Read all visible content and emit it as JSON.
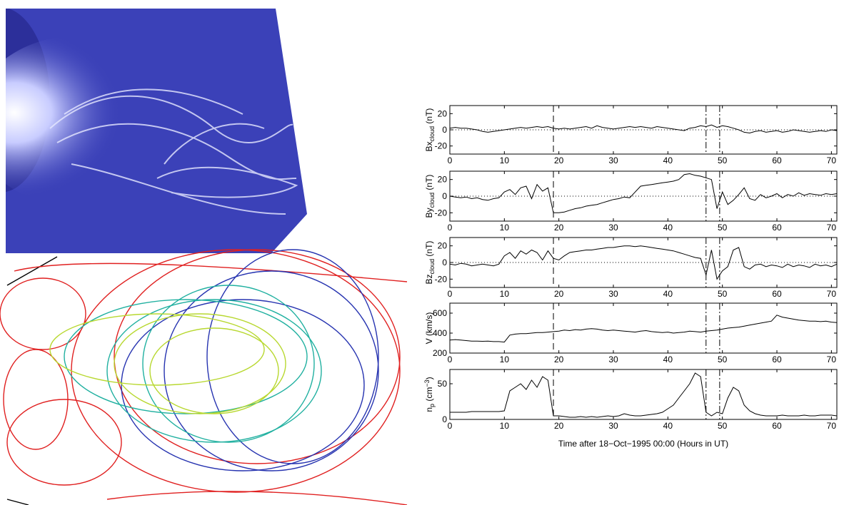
{
  "chart_data": [
    {
      "type": "line",
      "ylabel": [
        {
          "text": "Bx"
        },
        {
          "text": "cloud",
          "sub": true
        },
        {
          "text": " (nT)"
        }
      ],
      "x": [
        0,
        1,
        2,
        3,
        4,
        5,
        6,
        7,
        8,
        9,
        10,
        11,
        12,
        13,
        14,
        15,
        16,
        17,
        18,
        19,
        20,
        21,
        22,
        23,
        24,
        25,
        26,
        27,
        28,
        29,
        30,
        31,
        32,
        33,
        34,
        35,
        36,
        37,
        38,
        39,
        40,
        41,
        42,
        43,
        44,
        45,
        46,
        47,
        48,
        49,
        50,
        51,
        52,
        53,
        54,
        55,
        56,
        57,
        58,
        59,
        60,
        61,
        62,
        63,
        64,
        65,
        66,
        67,
        68,
        69,
        70,
        71
      ],
      "values": [
        2,
        3,
        2,
        2,
        1,
        0,
        -2,
        -3,
        -2,
        -1,
        0,
        1,
        2,
        3,
        2,
        3,
        4,
        3,
        4,
        2,
        1,
        2,
        1,
        2,
        3,
        4,
        2,
        5,
        3,
        2,
        1,
        2,
        3,
        4,
        3,
        4,
        3,
        2,
        4,
        3,
        2,
        1,
        0,
        -1,
        2,
        3,
        5,
        4,
        6,
        3,
        5,
        4,
        2,
        0,
        -3,
        -4,
        -2,
        -1,
        -3,
        -2,
        -1,
        -3,
        -2,
        0,
        -1,
        -2,
        -3,
        -2,
        -1,
        -2,
        0,
        -1
      ],
      "color": "#000000",
      "xlim": [
        0,
        71
      ],
      "xticks": [
        0,
        10,
        20,
        30,
        40,
        50,
        60,
        70
      ],
      "ylim": [
        -30,
        30
      ],
      "yticks": [
        20,
        0,
        -20
      ],
      "zero_line": true,
      "markers": [
        {
          "x": 19,
          "style": "dashed"
        },
        {
          "x": 47,
          "style": "dash-dot"
        },
        {
          "x": 49.5,
          "style": "dash-dot"
        }
      ]
    },
    {
      "type": "line",
      "ylabel": [
        {
          "text": "By"
        },
        {
          "text": "cloud",
          "sub": true
        },
        {
          "text": " (nT)"
        }
      ],
      "x": [
        0,
        1,
        2,
        3,
        4,
        5,
        6,
        7,
        8,
        9,
        10,
        11,
        12,
        13,
        14,
        15,
        16,
        17,
        18,
        19,
        20,
        21,
        22,
        23,
        24,
        25,
        26,
        27,
        28,
        29,
        30,
        31,
        32,
        33,
        34,
        35,
        36,
        37,
        38,
        39,
        40,
        41,
        42,
        43,
        44,
        45,
        46,
        47,
        48,
        49,
        50,
        51,
        52,
        53,
        54,
        55,
        56,
        57,
        58,
        59,
        60,
        61,
        62,
        63,
        64,
        65,
        66,
        67,
        68,
        69,
        70,
        71
      ],
      "values": [
        0,
        -1,
        -2,
        -1,
        -3,
        -2,
        -4,
        -5,
        -3,
        -2,
        5,
        8,
        2,
        10,
        12,
        -3,
        14,
        6,
        10,
        -20,
        -20,
        -19,
        -17,
        -15,
        -14,
        -12,
        -11,
        -10,
        -8,
        -6,
        -4,
        -3,
        -1,
        -2,
        5,
        12,
        13,
        14,
        15,
        16,
        17,
        18,
        20,
        26,
        27,
        25,
        24,
        22,
        20,
        -15,
        5,
        -10,
        -5,
        2,
        10,
        -3,
        -5,
        2,
        -2,
        0,
        3,
        -2,
        2,
        0,
        4,
        1,
        3,
        2,
        1,
        3,
        2,
        3
      ],
      "color": "#000000",
      "xlim": [
        0,
        71
      ],
      "xticks": [
        0,
        10,
        20,
        30,
        40,
        50,
        60,
        70
      ],
      "ylim": [
        -30,
        30
      ],
      "yticks": [
        20,
        0,
        -20
      ],
      "zero_line": true,
      "markers": [
        {
          "x": 19,
          "style": "dashed"
        },
        {
          "x": 47,
          "style": "dash-dot"
        },
        {
          "x": 49.5,
          "style": "dash-dot"
        }
      ]
    },
    {
      "type": "line",
      "ylabel": [
        {
          "text": "Bz"
        },
        {
          "text": "cloud",
          "sub": true
        },
        {
          "text": " (nT)"
        }
      ],
      "x": [
        0,
        1,
        2,
        3,
        4,
        5,
        6,
        7,
        8,
        9,
        10,
        11,
        12,
        13,
        14,
        15,
        16,
        17,
        18,
        19,
        20,
        21,
        22,
        23,
        24,
        25,
        26,
        27,
        28,
        29,
        30,
        31,
        32,
        33,
        34,
        35,
        36,
        37,
        38,
        39,
        40,
        41,
        42,
        43,
        44,
        45,
        46,
        47,
        48,
        49,
        50,
        51,
        52,
        53,
        54,
        55,
        56,
        57,
        58,
        59,
        60,
        61,
        62,
        63,
        64,
        65,
        66,
        67,
        68,
        69,
        70,
        71
      ],
      "values": [
        -2,
        -3,
        -1,
        -2,
        -4,
        -3,
        -2,
        -3,
        -4,
        -2,
        8,
        12,
        5,
        14,
        10,
        15,
        12,
        3,
        14,
        5,
        3,
        8,
        12,
        13,
        14,
        15,
        15,
        16,
        17,
        18,
        18,
        19,
        20,
        20,
        19,
        20,
        19,
        18,
        17,
        16,
        15,
        14,
        12,
        10,
        8,
        6,
        5,
        -15,
        15,
        -20,
        -10,
        -5,
        15,
        18,
        -5,
        -8,
        -3,
        -2,
        -5,
        -3,
        -4,
        -6,
        -2,
        -5,
        -3,
        -4,
        -6,
        -2,
        -4,
        -3,
        -5,
        -2
      ],
      "color": "#000000",
      "xlim": [
        0,
        71
      ],
      "xticks": [
        0,
        10,
        20,
        30,
        40,
        50,
        60,
        70
      ],
      "ylim": [
        -30,
        30
      ],
      "yticks": [
        20,
        0,
        -20
      ],
      "zero_line": true,
      "markers": [
        {
          "x": 19,
          "style": "dashed"
        },
        {
          "x": 47,
          "style": "dash-dot"
        },
        {
          "x": 49.5,
          "style": "dash-dot"
        }
      ]
    },
    {
      "type": "line",
      "ylabel": [
        {
          "text": "V (km/s)"
        }
      ],
      "x": [
        0,
        1,
        2,
        3,
        4,
        5,
        6,
        7,
        8,
        9,
        10,
        11,
        12,
        13,
        14,
        15,
        16,
        17,
        18,
        19,
        20,
        21,
        22,
        23,
        24,
        25,
        26,
        27,
        28,
        29,
        30,
        31,
        32,
        33,
        34,
        35,
        36,
        37,
        38,
        39,
        40,
        41,
        42,
        43,
        44,
        45,
        46,
        47,
        48,
        49,
        50,
        51,
        52,
        53,
        54,
        55,
        56,
        57,
        58,
        59,
        60,
        61,
        62,
        63,
        64,
        65,
        66,
        67,
        68,
        69,
        70,
        71
      ],
      "values": [
        330,
        335,
        330,
        325,
        320,
        320,
        318,
        320,
        315,
        315,
        310,
        380,
        390,
        395,
        395,
        400,
        405,
        405,
        410,
        415,
        420,
        430,
        425,
        435,
        430,
        440,
        445,
        440,
        430,
        425,
        430,
        425,
        420,
        415,
        410,
        420,
        425,
        415,
        410,
        405,
        410,
        400,
        405,
        410,
        420,
        415,
        410,
        420,
        425,
        430,
        440,
        450,
        455,
        460,
        470,
        480,
        490,
        500,
        510,
        520,
        580,
        560,
        550,
        540,
        530,
        525,
        520,
        520,
        515,
        520,
        510,
        505
      ],
      "color": "#000000",
      "xlim": [
        0,
        71
      ],
      "xticks": [
        0,
        10,
        20,
        30,
        40,
        50,
        60,
        70
      ],
      "ylim": [
        200,
        700
      ],
      "yticks": [
        600,
        400,
        200
      ],
      "zero_line": false,
      "markers": [
        {
          "x": 19,
          "style": "dashed"
        },
        {
          "x": 47,
          "style": "dash-dot"
        },
        {
          "x": 49.5,
          "style": "dash-dot"
        }
      ]
    },
    {
      "type": "line",
      "ylabel": [
        {
          "text": "n"
        },
        {
          "text": "p",
          "sub": true
        },
        {
          "text": " (cm"
        },
        {
          "text": "−3",
          "sup": true
        },
        {
          "text": ")"
        }
      ],
      "x": [
        0,
        1,
        2,
        3,
        4,
        5,
        6,
        7,
        8,
        9,
        10,
        11,
        12,
        13,
        14,
        15,
        16,
        17,
        18,
        19,
        20,
        21,
        22,
        23,
        24,
        25,
        26,
        27,
        28,
        29,
        30,
        31,
        32,
        33,
        34,
        35,
        36,
        37,
        38,
        39,
        40,
        41,
        42,
        43,
        44,
        45,
        46,
        47,
        48,
        49,
        50,
        51,
        52,
        53,
        54,
        55,
        56,
        57,
        58,
        59,
        60,
        61,
        62,
        63,
        64,
        65,
        66,
        67,
        68,
        69,
        70,
        71
      ],
      "values": [
        10,
        10,
        10,
        10,
        11,
        11,
        11,
        11,
        11,
        11,
        12,
        40,
        45,
        50,
        42,
        55,
        45,
        60,
        55,
        5,
        5,
        4,
        3,
        3,
        4,
        3,
        4,
        3,
        4,
        5,
        4,
        5,
        8,
        6,
        5,
        5,
        6,
        7,
        8,
        10,
        15,
        20,
        30,
        40,
        50,
        65,
        60,
        10,
        5,
        10,
        8,
        30,
        45,
        40,
        20,
        12,
        8,
        6,
        5,
        5,
        5,
        6,
        5,
        5,
        5,
        6,
        5,
        5,
        6,
        6,
        6,
        5
      ],
      "color": "#000000",
      "xlim": [
        0,
        71
      ],
      "xticks": [
        0,
        10,
        20,
        30,
        40,
        50,
        60,
        70
      ],
      "ylim": [
        0,
        70
      ],
      "yticks": [
        50,
        0
      ],
      "zero_line": false,
      "markers": [
        {
          "x": 19,
          "style": "dashed"
        },
        {
          "x": 47,
          "style": "dash-dot"
        },
        {
          "x": 49.5,
          "style": "dash-dot"
        }
      ],
      "xlabel": "Time after 18−Oct−1995 00:00 (Hours in UT)"
    }
  ]
}
